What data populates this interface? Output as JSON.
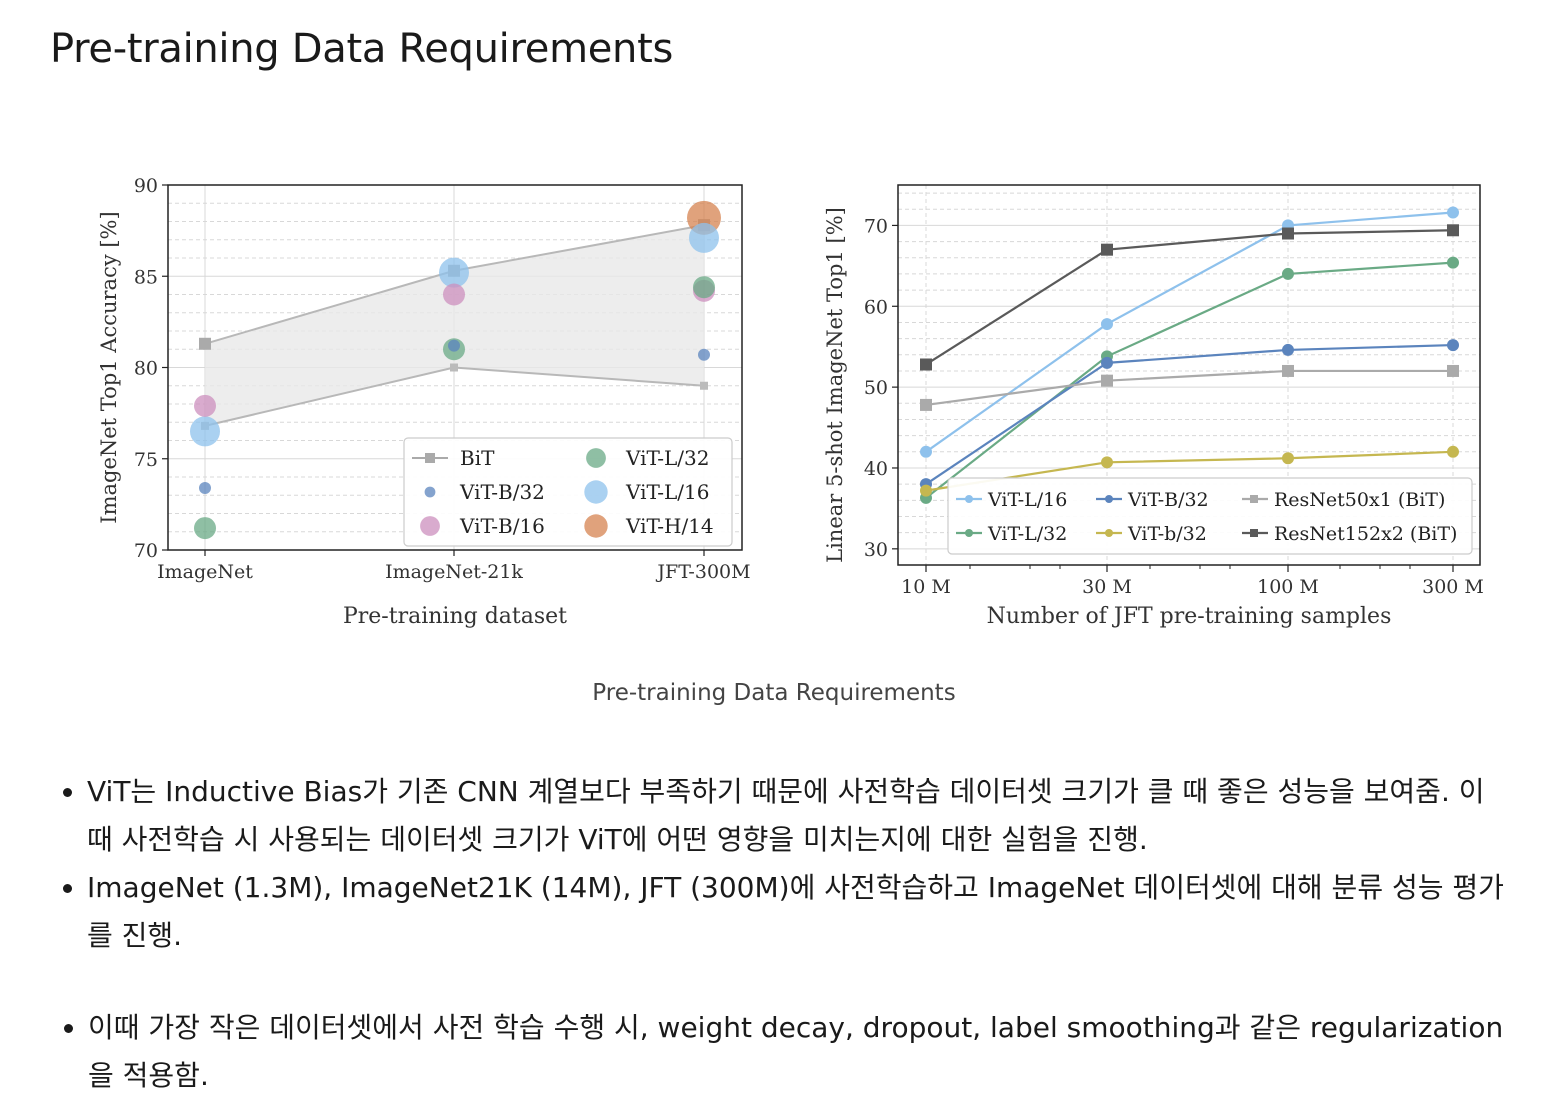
{
  "page": {
    "title": "Pre-training Data Requirements",
    "caption": "Pre-training Data Requirements",
    "bullets": [
      "ViT는 Inductive Bias가 기존 CNN 계열보다 부족하기 때문에 사전학습 데이터셋 크기가 클 때 좋은 성능을 보여줌. 이때 사전학습 시 사용되는 데이터셋 크기가 ViT에 어떤 영향을 미치는지에 대한 실험을 진행.",
      "ImageNet (1.3M), ImageNet21K (14M), JFT (300M)에 사전학습하고 ImageNet 데이터셋에 대해 분류 성능 평가를 진행."
    ],
    "sub_bullets": [
      "이때 가장 작은 데이터셋에서 사전 학습 수행 시, weight decay, dropout, label smoothing과 같은 regularization을 적용함."
    ]
  },
  "chart_data": [
    {
      "type": "scatter",
      "xlabel": "Pre-training dataset",
      "ylabel": "ImageNet Top1 Accuracy [%]",
      "categories": [
        "ImageNet",
        "ImageNet-21k",
        "JFT-300M"
      ],
      "ylim": [
        70,
        90
      ],
      "yticks": [
        70,
        75,
        80,
        85,
        90
      ],
      "grid": true,
      "legend_position": "bottom-right",
      "bit_band": {
        "upper": [
          81.3,
          85.3,
          87.8
        ],
        "lower": [
          76.8,
          80.0,
          79.0
        ],
        "color": "#b8b8b8"
      },
      "series": [
        {
          "name": "BiT",
          "marker": "square",
          "color": "#aaaaaa",
          "values": [
            81.3,
            85.3,
            87.8
          ]
        },
        {
          "name": "ViT-B/32",
          "size": 6,
          "color": "#5b84bd",
          "values": [
            73.4,
            81.2,
            80.7
          ]
        },
        {
          "name": "ViT-B/16",
          "size": 11,
          "color": "#cc8fbd",
          "values": [
            77.9,
            84.0,
            84.2
          ]
        },
        {
          "name": "ViT-L/32",
          "size": 11,
          "color": "#6aaa85",
          "values": [
            71.2,
            81.0,
            84.4
          ]
        },
        {
          "name": "ViT-L/16",
          "size": 15,
          "color": "#8ec1ec",
          "values": [
            76.5,
            85.2,
            87.1
          ]
        },
        {
          "name": "ViT-H/14",
          "size": 17,
          "color": "#d58350",
          "values": [
            null,
            null,
            88.2
          ]
        }
      ]
    },
    {
      "type": "line",
      "xlabel": "Number of JFT pre-training samples",
      "ylabel": "Linear 5-shot ImageNet Top1 [%]",
      "x": [
        "10 M",
        "30 M",
        "100 M",
        "300 M"
      ],
      "xscale": "log",
      "ylim": [
        28,
        75
      ],
      "yticks": [
        30,
        40,
        50,
        60,
        70
      ],
      "grid": true,
      "legend_position": "bottom-right",
      "series": [
        {
          "name": "ViT-L/16",
          "marker": "circle",
          "color": "#8ec1ec",
          "values": [
            42.0,
            57.8,
            70.0,
            71.6
          ]
        },
        {
          "name": "ViT-L/32",
          "marker": "circle",
          "color": "#6aaa85",
          "values": [
            36.3,
            53.8,
            64.0,
            65.4
          ]
        },
        {
          "name": "ViT-B/32",
          "marker": "circle",
          "color": "#5b84bd",
          "values": [
            38.0,
            53.0,
            54.6,
            55.2
          ]
        },
        {
          "name": "ViT-b/32",
          "marker": "circle",
          "color": "#c5b750",
          "values": [
            37.2,
            40.7,
            41.2,
            42.0
          ]
        },
        {
          "name": "ResNet50x1 (BiT)",
          "marker": "square",
          "color": "#aaaaaa",
          "values": [
            47.8,
            50.8,
            52.0,
            52.0
          ]
        },
        {
          "name": "ResNet152x2 (BiT)",
          "marker": "square",
          "color": "#5a5a5a",
          "values": [
            52.8,
            67.0,
            69.0,
            69.4
          ]
        }
      ]
    }
  ]
}
